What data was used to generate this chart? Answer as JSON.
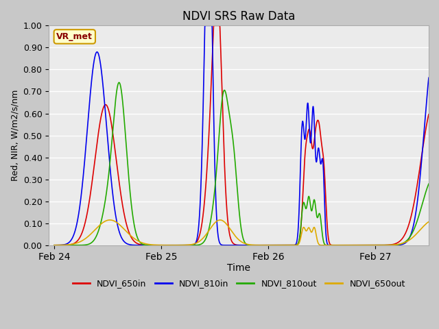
{
  "title": "NDVI SRS Raw Data",
  "xlabel": "Time",
  "ylabel": "Red, NIR, W/m2/s/nm",
  "ylim": [
    0.0,
    1.0
  ],
  "plot_bg": "#ebebeb",
  "fig_bg": "#c8c8c8",
  "annotation_text": "VR_met",
  "legend_entries": [
    "NDVI_650in",
    "NDVI_810in",
    "NDVI_810out",
    "NDVI_650out"
  ],
  "line_colors": [
    "#dd0000",
    "#0000ee",
    "#22aa00",
    "#ddaa00"
  ],
  "xtick_labels": [
    "Feb 24",
    "Feb 25",
    "Feb 26",
    "Feb 27"
  ],
  "xtick_positions": [
    0.0,
    1.0,
    2.0,
    3.0
  ],
  "xmax": 3.5,
  "yticks": [
    0.0,
    0.1,
    0.2,
    0.3,
    0.4,
    0.5,
    0.6,
    0.7,
    0.8,
    0.9,
    1.0
  ]
}
